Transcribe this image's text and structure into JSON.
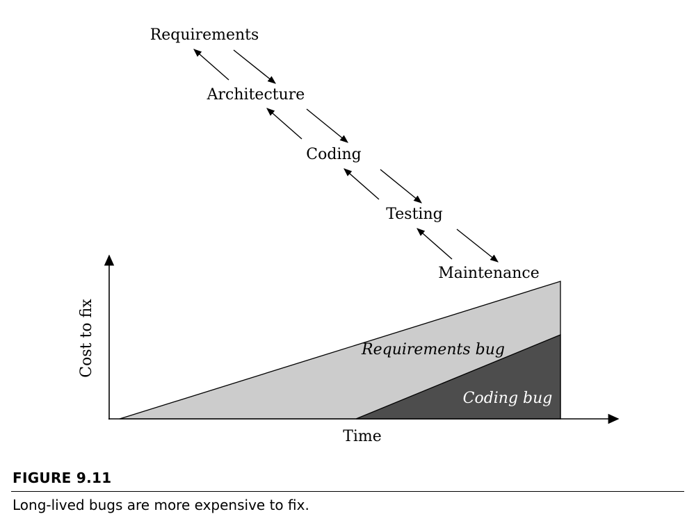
{
  "stages": [
    {
      "id": "requirements",
      "label": "Requirements"
    },
    {
      "id": "architecture",
      "label": "Architecture"
    },
    {
      "id": "coding",
      "label": "Coding"
    },
    {
      "id": "testing",
      "label": "Testing"
    },
    {
      "id": "maintenance",
      "label": "Maintenance"
    }
  ],
  "chart": {
    "ylabel": "Cost to fix",
    "xlabel": "Time",
    "regions": [
      {
        "id": "requirements-bug",
        "label": "Requirements bug",
        "color": "#cccccc"
      },
      {
        "id": "coding-bug",
        "label": "Coding bug",
        "color": "#4d4d4d"
      }
    ]
  },
  "figure": {
    "title": "FIGURE 9.11",
    "caption": "Long-lived bugs are more expensive to fix."
  }
}
